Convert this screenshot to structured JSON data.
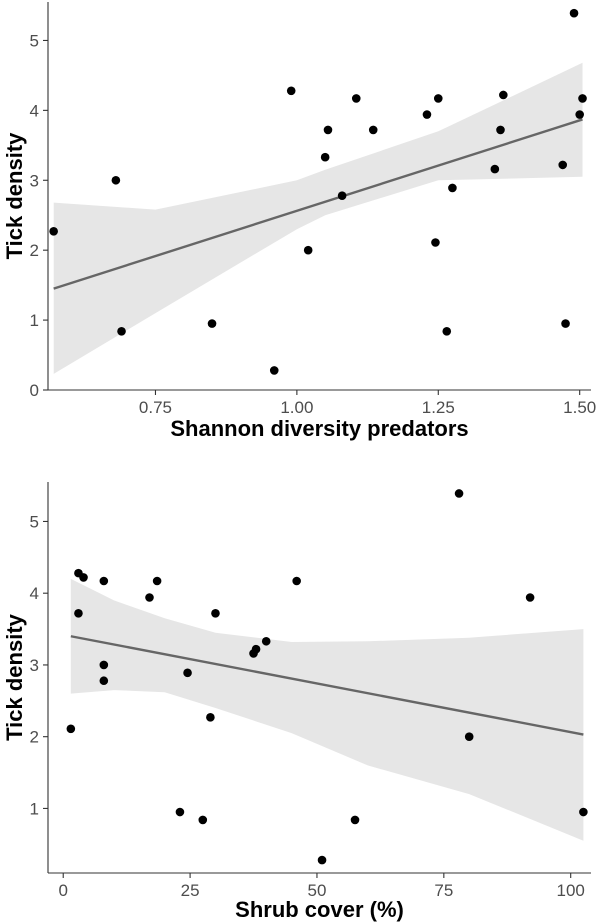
{
  "chart_data": [
    {
      "type": "scatter",
      "xlabel": "Shannon diversity predators",
      "ylabel": "Tick density",
      "xlim": [
        0.56,
        1.52
      ],
      "ylim": [
        0,
        5.55
      ],
      "xticks": [
        0.75,
        1.0,
        1.25,
        1.5
      ],
      "xtick_labels": [
        "0.75",
        "1.00",
        "1.25",
        "1.50"
      ],
      "yticks": [
        0,
        1,
        2,
        3,
        4,
        5
      ],
      "ytick_labels": [
        "0",
        "1",
        "2",
        "3",
        "4",
        "5"
      ],
      "grid": false,
      "trend": {
        "x": [
          0.57,
          1.505
        ],
        "y": [
          1.45,
          3.87
        ]
      },
      "ci_band": {
        "x": [
          0.57,
          0.75,
          1.0,
          1.05,
          1.25,
          1.505
        ],
        "lower": [
          0.23,
          1.1,
          2.3,
          2.5,
          3.0,
          3.05
        ],
        "upper": [
          2.68,
          2.58,
          3.0,
          3.15,
          3.7,
          4.68
        ]
      },
      "points": {
        "x": [
          0.57,
          0.68,
          0.69,
          0.85,
          0.96,
          0.99,
          1.02,
          1.05,
          1.055,
          1.08,
          1.105,
          1.135,
          1.23,
          1.245,
          1.25,
          1.265,
          1.275,
          1.35,
          1.36,
          1.365,
          1.47,
          1.475,
          1.49,
          1.5,
          1.505
        ],
        "y": [
          2.27,
          3.0,
          0.84,
          0.95,
          0.28,
          4.28,
          2.0,
          3.33,
          3.72,
          2.78,
          4.17,
          3.72,
          3.94,
          2.11,
          4.17,
          0.84,
          2.89,
          3.16,
          3.72,
          4.22,
          3.22,
          0.95,
          5.39,
          3.94,
          4.17
        ]
      }
    },
    {
      "type": "scatter",
      "xlabel": "Shrub cover (%)",
      "ylabel": "Tick density",
      "xlim": [
        -3,
        104
      ],
      "ylim": [
        0.1,
        5.55
      ],
      "xticks": [
        0,
        25,
        50,
        75,
        100
      ],
      "xtick_labels": [
        "0",
        "25",
        "50",
        "75",
        "100"
      ],
      "yticks": [
        1,
        2,
        3,
        4,
        5
      ],
      "ytick_labels": [
        "1",
        "2",
        "3",
        "4",
        "5"
      ],
      "grid": false,
      "trend": {
        "x": [
          1.5,
          102.5
        ],
        "y": [
          3.4,
          2.03
        ]
      },
      "ci_band": {
        "x": [
          1.5,
          10,
          20,
          30,
          45,
          60,
          80,
          102.5
        ],
        "lower": [
          2.6,
          2.65,
          2.62,
          2.4,
          2.05,
          1.6,
          1.2,
          0.55
        ],
        "upper": [
          4.2,
          3.9,
          3.65,
          3.45,
          3.32,
          3.33,
          3.38,
          3.5
        ]
      },
      "points": {
        "x": [
          1.5,
          3.0,
          3.0,
          4.0,
          8.0,
          8.0,
          8.0,
          17.0,
          18.5,
          23.0,
          24.5,
          27.5,
          29.0,
          30.0,
          37.5,
          38.0,
          40.0,
          46.0,
          51.0,
          57.5,
          78.0,
          80.0,
          92.0,
          102.5
        ],
        "y": [
          2.11,
          4.28,
          3.72,
          4.22,
          4.17,
          3.0,
          2.78,
          3.94,
          4.17,
          0.95,
          2.89,
          0.84,
          2.27,
          3.72,
          3.16,
          3.22,
          3.33,
          4.17,
          0.28,
          0.84,
          5.39,
          2.0,
          3.94,
          0.95
        ]
      }
    }
  ],
  "colors": {
    "points": "#000000",
    "trend_line": "#666666",
    "ci_band": "#e6e6e6",
    "axis_line": "#333333",
    "tick_label": "#4d4d4d",
    "axis_title": "#000000"
  }
}
